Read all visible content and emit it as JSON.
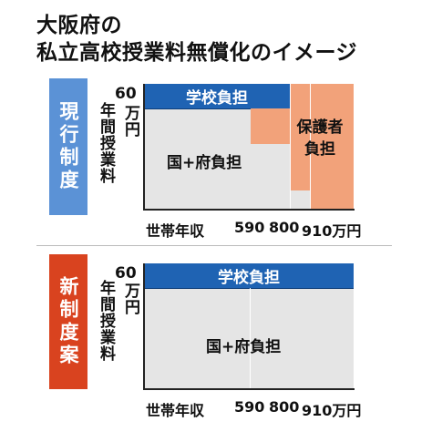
{
  "title": {
    "line1": "大阪府の",
    "line2": "私立高校授業料無償化のイメージ"
  },
  "colors": {
    "current_tab": "#5b92d6",
    "new_tab": "#d9431f",
    "school_burden": "#1f63b3",
    "guardian_burden": "#f2a27a",
    "prefecture_burden": "#e5e5e5"
  },
  "current": {
    "tab_label": "現行制度",
    "y_label": "年間授業料",
    "tick_60": "60",
    "tick_unit": "万円",
    "school_label": "学校負担",
    "prefecture_label": "国+府負担",
    "guardian_label_1": "保護者",
    "guardian_label_2": "負担",
    "x_title": "世帯年収",
    "x_590": "590",
    "x_800": "800",
    "x_910": "910万円"
  },
  "new": {
    "tab_label": "新制度案",
    "y_label": "年間授業料",
    "tick_60": "60",
    "tick_unit": "万円",
    "school_label": "学校負担",
    "prefecture_label": "国+府負担",
    "x_title": "世帯年収",
    "x_590": "590",
    "x_800": "800",
    "x_910": "910万円"
  }
}
